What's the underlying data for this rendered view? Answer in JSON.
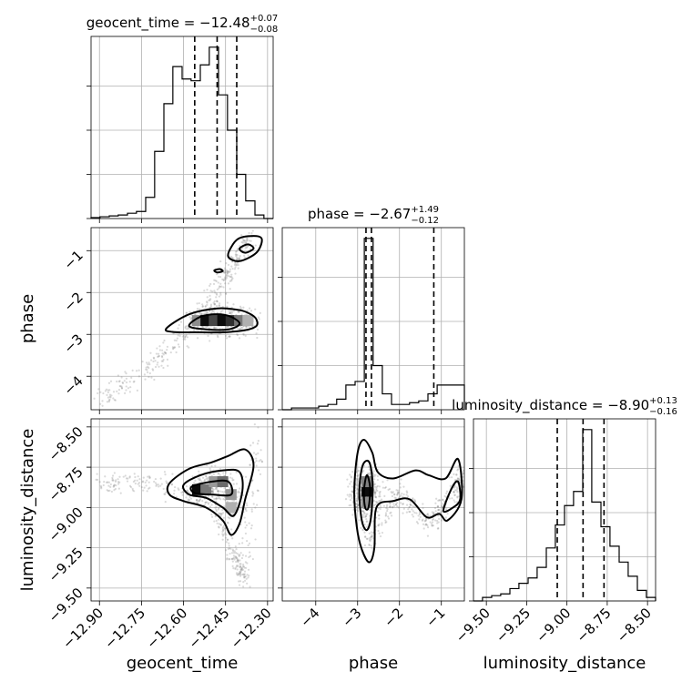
{
  "chart_data": {
    "type": "corner",
    "grid": true,
    "parameters": [
      {
        "name": "geocent_time",
        "range": [
          -12.93,
          -12.28
        ],
        "ticks": [
          -12.9,
          -12.75,
          -12.6,
          -12.45,
          -12.3
        ],
        "tick_labels": [
          "−12.90",
          "−12.75",
          "−12.60",
          "−12.45",
          "−12.30"
        ],
        "title_main": "geocent_time = −12.48",
        "title_up": "+0.07",
        "title_down": "−0.08",
        "quantiles": [
          -12.56,
          -12.48,
          -12.41
        ],
        "hist_x": [
          -12.93,
          -12.898,
          -12.865,
          -12.833,
          -12.8,
          -12.768,
          -12.735,
          -12.703,
          -12.67,
          -12.638,
          -12.605,
          -12.573,
          -12.54,
          -12.508,
          -12.475,
          -12.443,
          -12.41,
          -12.378,
          -12.345,
          -12.313,
          -12.28
        ],
        "hist_y": [
          0.005,
          0.01,
          0.015,
          0.02,
          0.03,
          0.04,
          0.12,
          0.38,
          0.65,
          0.86,
          0.79,
          0.78,
          0.87,
          0.97,
          0.7,
          0.5,
          0.25,
          0.1,
          0.02,
          0.0
        ]
      },
      {
        "name": "phase",
        "range": [
          -4.8,
          -0.45
        ],
        "ticks": [
          -4,
          -3,
          -2,
          -1
        ],
        "tick_labels": [
          "−4",
          "−3",
          "−2",
          "−1"
        ],
        "title_main": "phase = −2.67",
        "title_up": "+1.49",
        "title_down": "−0.12",
        "quantiles": [
          -2.8,
          -2.67,
          -1.18
        ],
        "hist_x": [
          -4.8,
          -4.58,
          -4.37,
          -4.15,
          -3.93,
          -3.71,
          -3.5,
          -3.28,
          -3.06,
          -2.84,
          -2.63,
          -2.41,
          -2.19,
          -1.97,
          -1.76,
          -1.54,
          -1.32,
          -1.1,
          -0.89,
          -0.67,
          -0.45
        ],
        "hist_y": [
          0.0,
          0.01,
          0.01,
          0.01,
          0.02,
          0.03,
          0.06,
          0.14,
          0.16,
          0.97,
          0.25,
          0.09,
          0.03,
          0.03,
          0.04,
          0.05,
          0.09,
          0.14,
          0.14,
          0.14
        ]
      },
      {
        "name": "luminosity_distance",
        "range": [
          -9.58,
          -8.45
        ],
        "ticks": [
          -9.5,
          -9.25,
          -9.0,
          -8.75,
          -8.5
        ],
        "tick_labels": [
          "−9.50",
          "−9.25",
          "−9.00",
          "−8.75",
          "−8.50"
        ],
        "title_main": "luminosity_distance = −8.90",
        "title_up": "+0.13",
        "title_down": "−0.16",
        "quantiles": [
          -9.06,
          -8.9,
          -8.77
        ],
        "hist_x": [
          -9.58,
          -9.524,
          -9.467,
          -9.411,
          -9.354,
          -9.298,
          -9.241,
          -9.185,
          -9.128,
          -9.072,
          -9.015,
          -8.959,
          -8.902,
          -8.846,
          -8.789,
          -8.733,
          -8.676,
          -8.62,
          -8.563,
          -8.507,
          -8.45
        ],
        "hist_y": [
          0.0,
          0.02,
          0.03,
          0.04,
          0.07,
          0.1,
          0.13,
          0.19,
          0.3,
          0.43,
          0.54,
          0.62,
          0.97,
          0.56,
          0.42,
          0.31,
          0.22,
          0.14,
          0.06,
          0.02
        ]
      }
    ],
    "pairs": [
      {
        "x": "geocent_time",
        "y": "phase",
        "contours": [
          [
            [
              -12.66,
              -2.85
            ],
            [
              -12.58,
              -2.52
            ],
            [
              -12.48,
              -2.38
            ],
            [
              -12.4,
              -2.42
            ],
            [
              -12.36,
              -2.52
            ],
            [
              -12.34,
              -2.64
            ],
            [
              -12.34,
              -2.8
            ],
            [
              -12.38,
              -2.9
            ],
            [
              -12.46,
              -2.95
            ],
            [
              -12.55,
              -2.95
            ],
            [
              -12.64,
              -2.94
            ]
          ],
          [
            [
              -12.58,
              -2.8
            ],
            [
              -12.54,
              -2.58
            ],
            [
              -12.48,
              -2.52
            ],
            [
              -12.43,
              -2.58
            ],
            [
              -12.4,
              -2.75
            ],
            [
              -12.44,
              -2.88
            ],
            [
              -12.52,
              -2.88
            ]
          ],
          [
            [
              -12.43,
              -0.92
            ],
            [
              -12.4,
              -0.7
            ],
            [
              -12.34,
              -0.65
            ],
            [
              -12.32,
              -0.75
            ],
            [
              -12.34,
              -1.05
            ],
            [
              -12.4,
              -1.25
            ],
            [
              -12.44,
              -1.15
            ]
          ],
          [
            [
              -12.4,
              -0.95
            ],
            [
              -12.37,
              -0.85
            ],
            [
              -12.35,
              -0.95
            ],
            [
              -12.38,
              -1.05
            ]
          ],
          [
            [
              -12.49,
              -1.47
            ],
            [
              -12.47,
              -1.44
            ],
            [
              -12.46,
              -1.49
            ],
            [
              -12.48,
              -1.52
            ]
          ]
        ],
        "density": [
          {
            "x": -12.55,
            "y": -2.67,
            "w": 0.4
          },
          {
            "x": -12.52,
            "y": -2.67,
            "w": 0.95
          },
          {
            "x": -12.49,
            "y": -2.67,
            "w": 0.7
          },
          {
            "x": -12.46,
            "y": -2.67,
            "w": 0.95
          },
          {
            "x": -12.43,
            "y": -2.67,
            "w": 0.8
          },
          {
            "x": -12.4,
            "y": -2.67,
            "w": 0.5
          },
          {
            "x": -12.37,
            "y": -2.67,
            "w": 0.25
          }
        ],
        "scatter_trend": [
          [
            -12.9,
            -4.6
          ],
          [
            -12.75,
            -3.9
          ],
          [
            -12.62,
            -3.2
          ],
          [
            -12.5,
            -2.2
          ],
          [
            -12.42,
            -1.3
          ],
          [
            -12.36,
            -0.7
          ]
        ]
      },
      {
        "x": "geocent_time",
        "y": "luminosity_distance",
        "contours": [
          [
            [
              -12.65,
              -8.85
            ],
            [
              -12.58,
              -8.76
            ],
            [
              -12.5,
              -8.72
            ],
            [
              -12.44,
              -8.68
            ],
            [
              -12.38,
              -8.64
            ],
            [
              -12.35,
              -8.74
            ],
            [
              -12.38,
              -8.95
            ],
            [
              -12.4,
              -9.1
            ],
            [
              -12.43,
              -9.17
            ],
            [
              -12.46,
              -9.08
            ],
            [
              -12.52,
              -9.0
            ],
            [
              -12.6,
              -8.96
            ],
            [
              -12.65,
              -8.92
            ]
          ],
          [
            [
              -12.6,
              -8.86
            ],
            [
              -12.54,
              -8.8
            ],
            [
              -12.46,
              -8.77
            ],
            [
              -12.4,
              -8.78
            ],
            [
              -12.39,
              -8.9
            ],
            [
              -12.42,
              -9.05
            ],
            [
              -12.46,
              -9.0
            ],
            [
              -12.52,
              -8.94
            ],
            [
              -12.58,
              -8.92
            ]
          ],
          [
            [
              -12.57,
              -8.87
            ],
            [
              -12.5,
              -8.84
            ],
            [
              -12.44,
              -8.84
            ],
            [
              -12.43,
              -8.92
            ],
            [
              -12.5,
              -8.92
            ],
            [
              -12.56,
              -8.91
            ]
          ]
        ],
        "density": [
          {
            "x": -12.55,
            "y": -8.89,
            "w": 0.95
          },
          {
            "x": -12.52,
            "y": -8.89,
            "w": 0.5
          },
          {
            "x": -12.49,
            "y": -8.84,
            "w": 0.35
          },
          {
            "x": -12.46,
            "y": -8.84,
            "w": 0.55
          },
          {
            "x": -12.43,
            "y": -8.92,
            "w": 0.35
          },
          {
            "x": -12.43,
            "y": -9.0,
            "w": 0.25
          }
        ],
        "scatter_trend": [
          [
            -12.9,
            -8.85
          ],
          [
            -12.7,
            -8.85
          ],
          [
            -12.5,
            -8.95
          ],
          [
            -12.42,
            -9.3
          ],
          [
            -12.38,
            -9.45
          ],
          [
            -12.33,
            -8.55
          ]
        ]
      },
      {
        "x": "phase",
        "y": "luminosity_distance",
        "contours": [
          [
            [
              -3.08,
              -8.9
            ],
            [
              -3.0,
              -8.66
            ],
            [
              -2.85,
              -8.58
            ],
            [
              -2.65,
              -8.66
            ],
            [
              -2.52,
              -8.78
            ],
            [
              -2.15,
              -8.82
            ],
            [
              -1.62,
              -8.77
            ],
            [
              -1.3,
              -8.8
            ],
            [
              -0.9,
              -8.82
            ],
            [
              -0.6,
              -8.7
            ],
            [
              -0.52,
              -8.95
            ],
            [
              -0.85,
              -9.08
            ],
            [
              -1.05,
              -9.04
            ],
            [
              -1.35,
              -9.06
            ],
            [
              -1.75,
              -8.95
            ],
            [
              -2.15,
              -8.96
            ],
            [
              -2.55,
              -9.0
            ],
            [
              -2.6,
              -9.25
            ],
            [
              -2.72,
              -9.34
            ],
            [
              -2.9,
              -9.26
            ],
            [
              -3.02,
              -9.12
            ]
          ],
          [
            [
              -2.96,
              -8.9
            ],
            [
              -2.88,
              -8.74
            ],
            [
              -2.72,
              -8.72
            ],
            [
              -2.64,
              -8.86
            ],
            [
              -2.68,
              -9.06
            ],
            [
              -2.78,
              -9.14
            ],
            [
              -2.9,
              -9.08
            ]
          ],
          [
            [
              -2.85,
              -8.9
            ],
            [
              -2.78,
              -8.8
            ],
            [
              -2.7,
              -8.88
            ],
            [
              -2.74,
              -9.0
            ],
            [
              -2.82,
              -9.0
            ]
          ],
          [
            [
              -0.95,
              -9.02
            ],
            [
              -0.75,
              -8.88
            ],
            [
              -0.6,
              -8.84
            ],
            [
              -0.55,
              -8.95
            ],
            [
              -0.72,
              -9.0
            ]
          ]
        ],
        "density": [
          {
            "x": -2.78,
            "y": -8.9,
            "w": 0.95
          },
          {
            "x": -2.78,
            "y": -8.84,
            "w": 0.45
          },
          {
            "x": -2.78,
            "y": -8.97,
            "w": 0.4
          }
        ],
        "scatter_trend": [
          [
            -3.0,
            -8.9
          ],
          [
            -2.7,
            -9.2
          ],
          [
            -2.0,
            -8.9
          ],
          [
            -1.3,
            -9.1
          ],
          [
            -0.8,
            -8.95
          ],
          [
            -0.5,
            -8.8
          ]
        ]
      }
    ]
  }
}
